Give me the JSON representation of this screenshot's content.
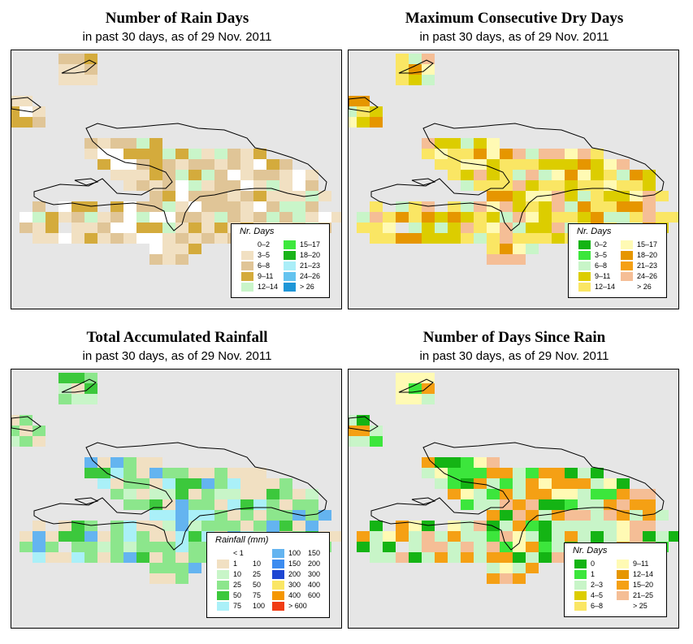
{
  "panels": [
    {
      "id": "rain_days",
      "title": "Number of Rain Days",
      "subtitle": "in past 30 days, as of  29 Nov. 2011",
      "legend_title": "Nr. Days",
      "legend_cols": 2,
      "legend": [
        {
          "label": "0–2",
          "color": "#ffffff"
        },
        {
          "label": "3–5",
          "color": "#f1e0c2"
        },
        {
          "label": "6–8",
          "color": "#e0c597"
        },
        {
          "label": "9–11",
          "color": "#d4ab3c"
        },
        {
          "label": "12–14",
          "color": "#c9f5c9"
        },
        {
          "label": "15–17",
          "color": "#3de83d"
        },
        {
          "label": "18–20",
          "color": "#1ab41a"
        },
        {
          "label": "21–23",
          "color": "#aaeef8"
        },
        {
          "label": "24–26",
          "color": "#64c3ef"
        },
        {
          "label": "> 26",
          "color": "#1e96d7"
        }
      ]
    },
    {
      "id": "dry_days",
      "title": "Maximum Consecutive Dry Days",
      "subtitle": "in past 30 days, as of  29 Nov. 2011",
      "legend_title": "Nr. Days",
      "legend_cols": 2,
      "legend": [
        {
          "label": "0–2",
          "color": "#14b414"
        },
        {
          "label": "3–5",
          "color": "#3ce63c"
        },
        {
          "label": "6–8",
          "color": "#c8f5c8"
        },
        {
          "label": "9–11",
          "color": "#dccd00"
        },
        {
          "label": "12–14",
          "color": "#fae664"
        },
        {
          "label": "15–17",
          "color": "#fffab4"
        },
        {
          "label": "18–20",
          "color": "#e69600"
        },
        {
          "label": "21–23",
          "color": "#f5a014"
        },
        {
          "label": "24–26",
          "color": "#f5be96"
        },
        {
          "label": "> 26",
          "color": "#ffffff"
        }
      ]
    },
    {
      "id": "rainfall",
      "title": "Total Accumulated Rainfall",
      "subtitle": "in past 30 days, as of  29 Nov. 2011",
      "legend_title": "Rainfall (mm)",
      "legend_cols": 2,
      "legend": [
        {
          "a": "< 1",
          "b": "",
          "color": "#ffffff"
        },
        {
          "a": "1",
          "b": "10",
          "color": "#f1e0c2"
        },
        {
          "a": "10",
          "b": "25",
          "color": "#c8f5c8"
        },
        {
          "a": "25",
          "b": "50",
          "color": "#8ce68c"
        },
        {
          "a": "50",
          "b": "75",
          "color": "#3cc83c"
        },
        {
          "a": "75",
          "b": "100",
          "color": "#aaf0f8"
        },
        {
          "a": "100",
          "b": "150",
          "color": "#64b4f0"
        },
        {
          "a": "150",
          "b": "200",
          "color": "#3c8cf0"
        },
        {
          "a": "200",
          "b": "300",
          "color": "#1e46d2"
        },
        {
          "a": "300",
          "b": "400",
          "color": "#fae664"
        },
        {
          "a": "400",
          "b": "600",
          "color": "#f59600"
        },
        {
          "a": "> 600",
          "b": "",
          "color": "#f03c14"
        }
      ]
    },
    {
      "id": "days_since_rain",
      "title": "Number of Days Since Rain",
      "subtitle": "in past 30 days, as of  29 Nov. 2011",
      "legend_title": "Nr. Days",
      "legend_cols": 2,
      "legend": [
        {
          "label": "0",
          "color": "#14b414"
        },
        {
          "label": "1",
          "color": "#3ce63c"
        },
        {
          "label": "2–3",
          "color": "#c8f5c8"
        },
        {
          "label": "4–5",
          "color": "#dccd00"
        },
        {
          "label": "6–8",
          "color": "#fae664"
        },
        {
          "label": "9–11",
          "color": "#fffab4"
        },
        {
          "label": "12–14",
          "color": "#e69600"
        },
        {
          "label": "15–20",
          "color": "#f5a014"
        },
        {
          "label": "21–25",
          "color": "#f5be96"
        },
        {
          "label": "> 25",
          "color": "#ffffff"
        }
      ]
    }
  ]
}
